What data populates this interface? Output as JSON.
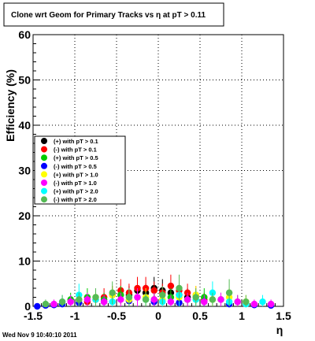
{
  "chart_data": {
    "type": "scatter",
    "title": "Clone wrt Geom for Primary Tracks vs   η at pT > 0.11",
    "xlabel": "η",
    "ylabel": "Efficiency (%)",
    "xlim": [
      -1.5,
      1.5
    ],
    "ylim": [
      0,
      60
    ],
    "x_ticks": [
      -1.5,
      -1,
      -0.5,
      0,
      0.5,
      1,
      1.5
    ],
    "x_tick_labels": [
      "-1.5",
      "-1",
      "-0.5",
      "0",
      "0.5",
      "1",
      "1.5"
    ],
    "y_ticks": [
      0,
      10,
      20,
      30,
      40,
      50,
      60
    ],
    "y_tick_labels": [
      "0",
      "10",
      "20",
      "30",
      "40",
      "50",
      "60"
    ],
    "grid": true,
    "legend_position": "left-middle",
    "footer": "Wed Nov  9 10:40:10 2011",
    "series": [
      {
        "name": "(+) with pT > 0.1",
        "color": "#000000",
        "x": [
          -0.35,
          -0.25,
          -0.15,
          -0.05,
          0.05,
          0.15,
          0.25,
          0.35
        ],
        "y": [
          2.5,
          3.5,
          3.0,
          4.0,
          3.5,
          3.0,
          2.5,
          2.0
        ],
        "err": [
          2.0,
          2.5,
          2.0,
          2.5,
          2.5,
          2.0,
          2.0,
          2.0
        ]
      },
      {
        "name": "(-) with pT > 0.1",
        "color": "#ff0000",
        "x": [
          -0.85,
          -0.75,
          -0.65,
          -0.55,
          -0.45,
          -0.35,
          -0.25,
          -0.15,
          -0.05,
          0.05,
          0.15,
          0.25,
          0.35,
          0.45,
          0.55
        ],
        "y": [
          1.0,
          1.5,
          2.0,
          2.5,
          3.5,
          3.0,
          4.0,
          4.0,
          3.5,
          3.0,
          4.5,
          3.5,
          3.0,
          2.5,
          1.5
        ],
        "err": [
          1.5,
          1.5,
          2.0,
          2.0,
          2.5,
          2.0,
          2.5,
          2.5,
          2.0,
          2.0,
          2.5,
          2.0,
          2.0,
          2.0,
          1.5
        ]
      },
      {
        "name": "(+) with pT > 0.5",
        "color": "#00cc00",
        "x": [
          -1.05,
          -0.85,
          -0.65,
          -0.45,
          -0.25,
          -0.05,
          0.15,
          0.35,
          0.55,
          0.75,
          0.95
        ],
        "y": [
          1.5,
          2.0,
          1.5,
          2.5,
          2.0,
          1.5,
          2.0,
          1.5,
          2.0,
          1.5,
          1.0
        ],
        "err": [
          1.5,
          2.0,
          1.5,
          2.0,
          2.0,
          1.5,
          2.0,
          1.5,
          2.0,
          1.5,
          1.5
        ]
      },
      {
        "name": "(-) with pT > 0.5",
        "color": "#0000ff",
        "x": [
          -1.45,
          -1.35,
          -1.25,
          -1.15,
          -0.95,
          -0.65,
          -0.35,
          -0.05,
          0.25,
          0.55,
          0.85,
          1.15,
          1.35
        ],
        "y": [
          0.0,
          0.2,
          0.3,
          0.5,
          0.8,
          1.0,
          1.2,
          1.0,
          0.8,
          1.0,
          0.5,
          0.3,
          0.2
        ],
        "err": [
          0.3,
          0.5,
          0.5,
          0.8,
          1.0,
          1.2,
          1.5,
          1.2,
          1.0,
          1.2,
          0.8,
          0.5,
          0.5
        ]
      },
      {
        "name": "(+) with pT > 1.0",
        "color": "#ffff00",
        "x": [
          -0.95,
          -0.75,
          -0.55,
          -0.35,
          -0.15,
          0.05,
          0.25,
          0.45,
          0.65,
          0.85,
          1.05
        ],
        "y": [
          1.5,
          2.0,
          2.5,
          1.5,
          2.0,
          1.5,
          2.0,
          2.5,
          1.5,
          2.0,
          1.0
        ],
        "err": [
          1.5,
          2.0,
          2.0,
          1.5,
          2.0,
          1.5,
          2.0,
          2.0,
          1.5,
          2.0,
          1.5
        ]
      },
      {
        "name": "(-) with pT > 1.0",
        "color": "#ff00ff",
        "x": [
          -1.25,
          -1.05,
          -0.85,
          -0.65,
          -0.45,
          -0.25,
          -0.05,
          0.15,
          0.35,
          0.55,
          0.75,
          0.95,
          1.15,
          1.35
        ],
        "y": [
          0.5,
          1.0,
          1.5,
          1.0,
          1.5,
          2.0,
          1.5,
          1.0,
          1.5,
          1.0,
          1.5,
          1.0,
          0.5,
          0.5
        ],
        "err": [
          1.0,
          1.5,
          1.5,
          1.5,
          1.5,
          2.0,
          1.5,
          1.5,
          1.5,
          1.5,
          1.5,
          1.5,
          1.0,
          1.0
        ]
      },
      {
        "name": "(+) with pT > 2.0",
        "color": "#00ffff",
        "x": [
          -1.15,
          -0.95,
          -0.75,
          -0.55,
          -0.35,
          -0.15,
          0.05,
          0.25,
          0.45,
          0.65,
          0.85,
          1.05,
          1.25
        ],
        "y": [
          1.0,
          2.5,
          1.5,
          1.0,
          2.0,
          1.5,
          1.0,
          2.5,
          1.5,
          3.0,
          1.0,
          0.5,
          1.0
        ],
        "err": [
          1.5,
          2.5,
          1.5,
          1.5,
          2.0,
          1.5,
          1.5,
          2.5,
          2.0,
          2.5,
          1.5,
          1.0,
          1.5
        ]
      },
      {
        "name": "(-) with pT > 2.0",
        "color": "#55bb55",
        "x": [
          -1.35,
          -1.15,
          -0.95,
          -0.75,
          -0.55,
          -0.35,
          -0.15,
          0.05,
          0.25,
          0.45,
          0.65,
          0.85,
          1.05
        ],
        "y": [
          0.5,
          1.0,
          1.5,
          2.0,
          3.0,
          2.0,
          1.5,
          2.5,
          4.0,
          2.0,
          1.5,
          3.0,
          1.0
        ],
        "err": [
          1.0,
          1.5,
          1.5,
          2.0,
          2.5,
          2.0,
          1.5,
          2.0,
          3.0,
          2.0,
          1.5,
          3.0,
          1.5
        ]
      }
    ]
  }
}
